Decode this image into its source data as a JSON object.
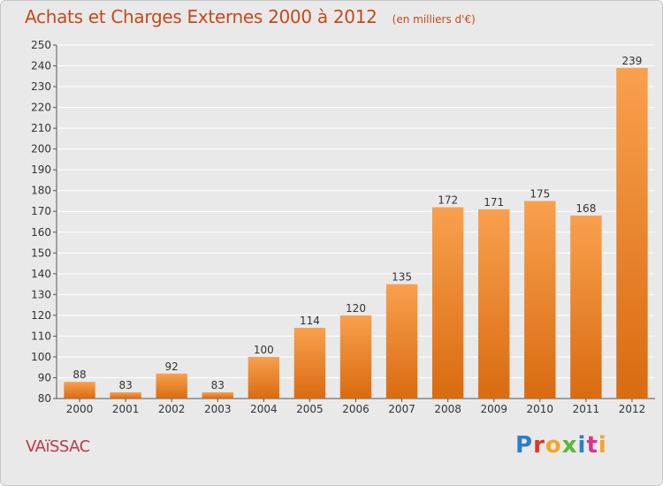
{
  "header": {
    "title": "Achats et Charges Externes 2000 à 2012",
    "subtitle": "(en milliers d'€)"
  },
  "footer": {
    "place": "VAïSSAC",
    "brand": "Proxiti",
    "brand_colors": [
      "#2a7fc8",
      "#e2322b",
      "#f5a623",
      "#5bb832",
      "#2a7fc8",
      "#d9338f",
      "#f5a623"
    ]
  },
  "colors": {
    "bar_top": "#f9a04e",
    "bar_bottom": "#d96b10",
    "title": "#c8481c",
    "grid": "#ffffff",
    "plot_bg": "#e9e9e9"
  },
  "chart_data": {
    "type": "bar",
    "categories": [
      "2000",
      "2001",
      "2002",
      "2003",
      "2004",
      "2005",
      "2006",
      "2007",
      "2008",
      "2009",
      "2010",
      "2011",
      "2012"
    ],
    "values": [
      88,
      83,
      92,
      83,
      100,
      114,
      120,
      135,
      172,
      171,
      175,
      168,
      239
    ],
    "ylim": [
      80,
      250
    ],
    "ytick_step": 10,
    "grid": true,
    "legend": "none"
  }
}
